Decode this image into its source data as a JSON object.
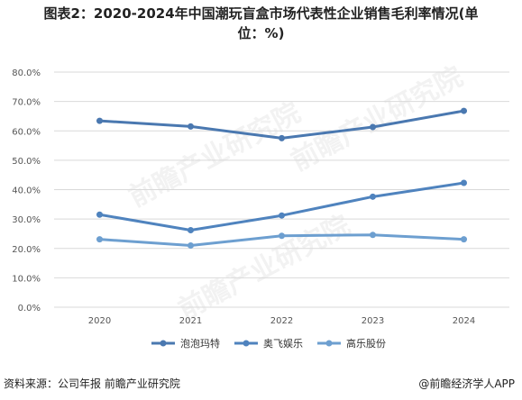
{
  "title_line1": "图表2：2020-2024年中国潮玩盲盒市场代表性企业销售毛利率情况(单",
  "title_line2": "位：%)",
  "source": "资料来源：公司年报 前瞻产业研究院",
  "credit": "@前瞻经济学人APP",
  "watermark": "前瞻产业研究院",
  "chart_data": {
    "type": "line",
    "categories": [
      "2020",
      "2021",
      "2022",
      "2023",
      "2024"
    ],
    "ylim": [
      0,
      80
    ],
    "yticks": [
      "0.0%",
      "10.0%",
      "20.0%",
      "30.0%",
      "40.0%",
      "50.0%",
      "60.0%",
      "70.0%",
      "80.0%"
    ],
    "grid": true,
    "legend_position": "bottom",
    "series": [
      {
        "name": "泡泡玛特",
        "values": [
          63.4,
          61.5,
          57.5,
          61.3,
          66.8
        ],
        "color": "#4a78b0"
      },
      {
        "name": "奥飞娱乐",
        "values": [
          31.5,
          26.2,
          31.2,
          37.6,
          42.3
        ],
        "color": "#4f83be"
      },
      {
        "name": "高乐股份",
        "values": [
          23.1,
          21.0,
          24.3,
          24.6,
          23.1
        ],
        "color": "#6d9fd0"
      }
    ]
  }
}
